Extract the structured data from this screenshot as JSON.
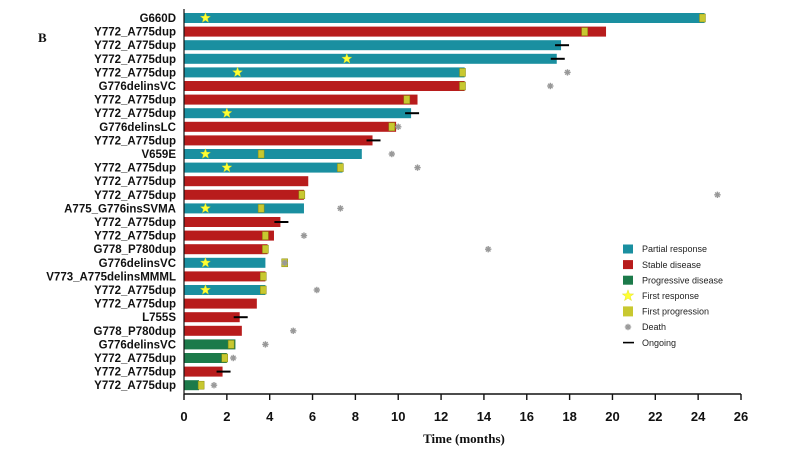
{
  "panel_label": "B",
  "chart_data": {
    "type": "bar",
    "orientation": "horizontal",
    "xlabel": "Time (months)",
    "xlim": [
      0,
      26
    ],
    "xticks": [
      0,
      2,
      4,
      6,
      8,
      10,
      12,
      14,
      16,
      18,
      20,
      22,
      24,
      26
    ],
    "colors": {
      "Partial response": "#1a8fa0",
      "Stable disease": "#b81c1c",
      "Progressive disease": "#1c7a4a",
      "First response": "#ffff33",
      "First progression": "#c8c830",
      "Death": "#999999",
      "Ongoing": "#000000"
    },
    "legend": [
      {
        "label": "Partial response",
        "kind": "rect",
        "color": "#1a8fa0"
      },
      {
        "label": "Stable disease",
        "kind": "rect",
        "color": "#b81c1c"
      },
      {
        "label": "Progressive disease",
        "kind": "rect",
        "color": "#1c7a4a"
      },
      {
        "label": "First response",
        "kind": "star",
        "color": "#ffff33"
      },
      {
        "label": "First progression",
        "kind": "square",
        "color": "#c8c830"
      },
      {
        "label": "Death",
        "kind": "death",
        "color": "#999999"
      },
      {
        "label": "Ongoing",
        "kind": "line",
        "color": "#000000"
      }
    ],
    "patients": [
      {
        "label": "G660D",
        "response": "Partial response",
        "duration": 24.3,
        "first_response": 1.0,
        "first_progression": 24.2,
        "ongoing": false,
        "death": null
      },
      {
        "label": "Y772_A775dup",
        "response": "Stable disease",
        "duration": 19.7,
        "first_response": null,
        "first_progression": 18.7,
        "ongoing": false,
        "death": null
      },
      {
        "label": "Y772_A775dup",
        "response": "Partial response",
        "duration": 17.6,
        "first_response": null,
        "first_progression": null,
        "ongoing": true,
        "death": null
      },
      {
        "label": "Y772_A775dup",
        "response": "Partial response",
        "duration": 17.4,
        "first_response": 7.6,
        "first_progression": null,
        "ongoing": true,
        "death": null
      },
      {
        "label": "Y772_A775dup",
        "response": "Partial response",
        "duration": 13.1,
        "first_response": 2.5,
        "first_progression": 13.0,
        "ongoing": false,
        "death": 17.9
      },
      {
        "label": "G776delinsVC",
        "response": "Stable disease",
        "duration": 13.1,
        "first_response": null,
        "first_progression": 13.0,
        "ongoing": false,
        "death": 17.1
      },
      {
        "label": "Y772_A775dup",
        "response": "Stable disease",
        "duration": 10.9,
        "first_response": null,
        "first_progression": 10.4,
        "ongoing": false,
        "death": null
      },
      {
        "label": "Y772_A775dup",
        "response": "Partial response",
        "duration": 10.6,
        "first_response": 2.0,
        "first_progression": null,
        "ongoing": true,
        "death": null
      },
      {
        "label": "G776delinsLC",
        "response": "Stable disease",
        "duration": 9.9,
        "first_response": null,
        "first_progression": 9.7,
        "ongoing": false,
        "death": 10.0
      },
      {
        "label": "Y772_A775dup",
        "response": "Stable disease",
        "duration": 8.8,
        "first_response": null,
        "first_progression": null,
        "ongoing": true,
        "death": null
      },
      {
        "label": "V659E",
        "response": "Partial response",
        "duration": 8.3,
        "first_response": 1.0,
        "first_progression": 3.6,
        "ongoing": false,
        "death": 9.7
      },
      {
        "label": "Y772_A775dup",
        "response": "Partial response",
        "duration": 7.4,
        "first_response": 2.0,
        "first_progression": 7.3,
        "ongoing": false,
        "death": 10.9
      },
      {
        "label": "Y772_A775dup",
        "response": "Stable disease",
        "duration": 5.8,
        "first_response": null,
        "first_progression": null,
        "ongoing": false,
        "death": null
      },
      {
        "label": "Y772_A775dup",
        "response": "Stable disease",
        "duration": 5.6,
        "first_response": null,
        "first_progression": 5.5,
        "ongoing": false,
        "death": 24.9
      },
      {
        "label": "A775_G776insSVMA",
        "response": "Partial response",
        "duration": 5.6,
        "first_response": 1.0,
        "first_progression": 3.6,
        "ongoing": false,
        "death": 7.3
      },
      {
        "label": "Y772_A775dup",
        "response": "Stable disease",
        "duration": 4.5,
        "first_response": null,
        "first_progression": null,
        "ongoing": true,
        "death": null
      },
      {
        "label": "Y772_A775dup",
        "response": "Stable disease",
        "duration": 4.2,
        "first_response": null,
        "first_progression": 3.8,
        "ongoing": false,
        "death": 5.6
      },
      {
        "label": "G778_P780dup",
        "response": "Stable disease",
        "duration": 3.9,
        "first_response": null,
        "first_progression": 3.8,
        "ongoing": false,
        "death": 14.2
      },
      {
        "label": "G776delinsVC",
        "response": "Partial response",
        "duration": 3.8,
        "first_response": 1.0,
        "first_progression": 4.7,
        "ongoing": false,
        "death": 4.7
      },
      {
        "label": "V773_A775delinsMMML",
        "response": "Stable disease",
        "duration": 3.8,
        "first_response": null,
        "first_progression": 3.7,
        "ongoing": false,
        "death": null
      },
      {
        "label": "Y772_A775dup",
        "response": "Partial response",
        "duration": 3.8,
        "first_response": 1.0,
        "first_progression": 3.7,
        "ongoing": false,
        "death": 6.2
      },
      {
        "label": "Y772_A775dup",
        "response": "Stable disease",
        "duration": 3.4,
        "first_response": null,
        "first_progression": null,
        "ongoing": false,
        "death": null
      },
      {
        "label": "L755S",
        "response": "Stable disease",
        "duration": 2.6,
        "first_response": null,
        "first_progression": null,
        "ongoing": true,
        "death": null
      },
      {
        "label": "G778_P780dup",
        "response": "Stable disease",
        "duration": 2.7,
        "first_response": null,
        "first_progression": null,
        "ongoing": false,
        "death": 5.1
      },
      {
        "label": "G776delinsVC",
        "response": "Progressive disease",
        "duration": 2.4,
        "first_response": null,
        "first_progression": 2.2,
        "ongoing": false,
        "death": 3.8
      },
      {
        "label": "Y772_A775dup",
        "response": "Progressive disease",
        "duration": 2.0,
        "first_response": null,
        "first_progression": 1.9,
        "ongoing": false,
        "death": 2.3
      },
      {
        "label": "Y772_A775dup",
        "response": "Stable disease",
        "duration": 1.8,
        "first_response": null,
        "first_progression": null,
        "ongoing": true,
        "death": null
      },
      {
        "label": "Y772_A775dup",
        "response": "Progressive disease",
        "duration": 0.7,
        "first_response": null,
        "first_progression": 0.8,
        "ongoing": false,
        "death": 1.4
      }
    ]
  }
}
